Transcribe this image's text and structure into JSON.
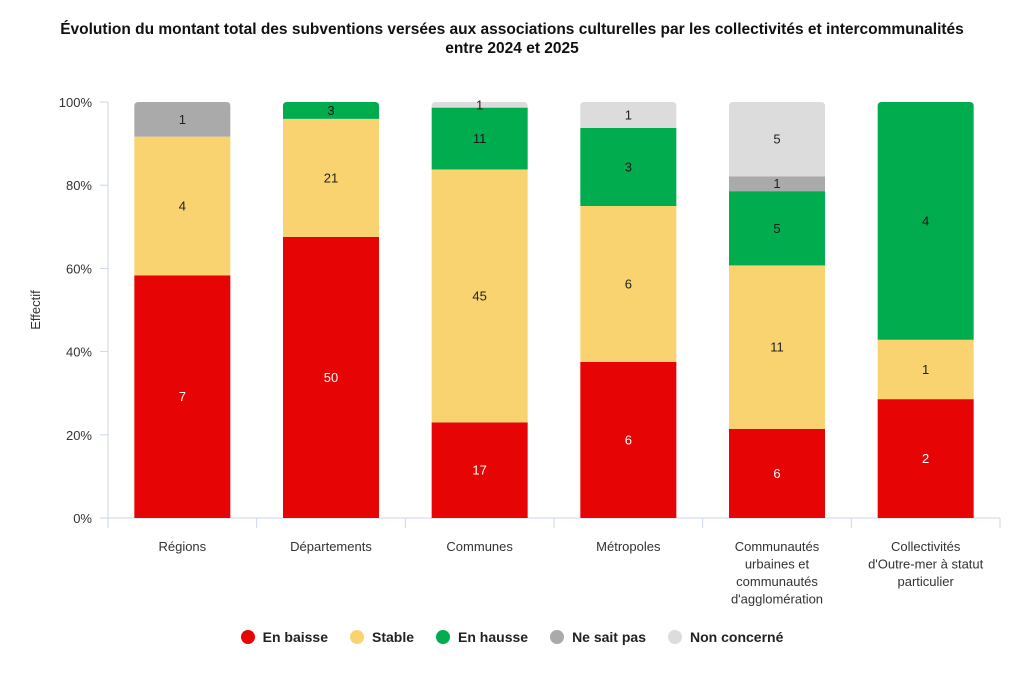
{
  "chart_data": {
    "type": "bar",
    "stacked": true,
    "normalized": true,
    "title": "Évolution du montant total des subventions versées aux associations culturelles par les collectivités et intercommunalités entre 2024 et 2025",
    "title_lines": [
      "Évolution du montant total des subventions versées aux associations culturelles par les collectivités et intercommunalités",
      "entre 2024 et 2025"
    ],
    "xlabel": "",
    "ylabel": "Effectif",
    "ylim": [
      0,
      100
    ],
    "yticks": [
      "0%",
      "20%",
      "40%",
      "60%",
      "80%",
      "100%"
    ],
    "categories": [
      [
        "Régions"
      ],
      [
        "Départements"
      ],
      [
        "Communes"
      ],
      [
        "Métropoles"
      ],
      [
        "Communautés",
        "urbaines et",
        "communautés",
        "d'agglomération"
      ],
      [
        "Collectivités",
        "d'Outre-mer à statut",
        "particulier"
      ]
    ],
    "series": [
      {
        "name": "En baisse",
        "color": "#e60404",
        "label_color": "#ffffff",
        "values": [
          7,
          50,
          17,
          6,
          6,
          2
        ]
      },
      {
        "name": "Stable",
        "color": "#f8d370",
        "label_color": "#222222",
        "values": [
          4,
          21,
          45,
          6,
          11,
          1
        ]
      },
      {
        "name": "En hausse",
        "color": "#00ac4e",
        "label_color": "#1a1a1a",
        "values": [
          0,
          3,
          11,
          3,
          5,
          4
        ]
      },
      {
        "name": "Ne sait pas",
        "color": "#aaaaaa",
        "label_color": "#222222",
        "values": [
          1,
          0,
          0,
          0,
          1,
          0
        ]
      },
      {
        "name": "Non concerné",
        "color": "#dddcdd",
        "label_color": "#222222",
        "values": [
          0,
          0,
          1,
          1,
          5,
          0
        ]
      }
    ],
    "grid": false,
    "legend_position": "bottom"
  }
}
